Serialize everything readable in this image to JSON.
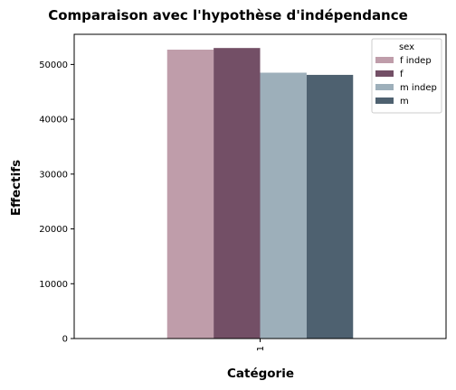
{
  "chart_data": {
    "type": "bar",
    "title": "Comparaison avec l'hypothèse d'indépendance",
    "xlabel": "Catégorie",
    "ylabel": "Effectifs",
    "categories": [
      "1"
    ],
    "ylim": [
      0,
      55500
    ],
    "yticks": [
      0,
      10000,
      20000,
      30000,
      40000,
      50000
    ],
    "legend_title": "sex",
    "legend_position": "top-right",
    "grid": false,
    "series": [
      {
        "name": "f indep",
        "color": "#bf9daa",
        "values": [
          52700
        ]
      },
      {
        "name": "f",
        "color": "#734f66",
        "values": [
          53000
        ]
      },
      {
        "name": "m indep",
        "color": "#9dafba",
        "values": [
          48500
        ]
      },
      {
        "name": "m",
        "color": "#4e6170",
        "values": [
          48100
        ]
      }
    ]
  }
}
